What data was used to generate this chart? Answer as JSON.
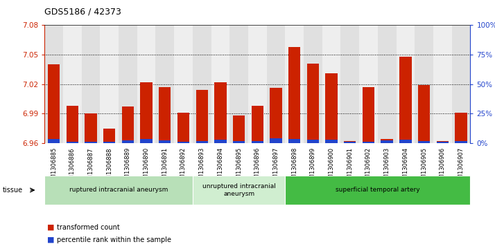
{
  "title": "GDS5186 / 42373",
  "samples": [
    "GSM1306885",
    "GSM1306886",
    "GSM1306887",
    "GSM1306888",
    "GSM1306889",
    "GSM1306890",
    "GSM1306891",
    "GSM1306892",
    "GSM1306893",
    "GSM1306894",
    "GSM1306895",
    "GSM1306896",
    "GSM1306897",
    "GSM1306898",
    "GSM1306899",
    "GSM1306900",
    "GSM1306901",
    "GSM1306902",
    "GSM1306903",
    "GSM1306904",
    "GSM1306905",
    "GSM1306906",
    "GSM1306907"
  ],
  "red_values": [
    7.04,
    6.998,
    6.99,
    6.975,
    6.997,
    7.022,
    7.017,
    6.991,
    7.014,
    7.022,
    6.988,
    6.998,
    7.016,
    7.058,
    7.041,
    7.031,
    6.962,
    7.017,
    6.964,
    7.048,
    7.019,
    6.962,
    6.991
  ],
  "blue_values": [
    3.5,
    1.0,
    1.0,
    1.0,
    2.0,
    3.5,
    2.0,
    1.0,
    1.5,
    3.0,
    1.5,
    1.5,
    4.0,
    3.5,
    3.0,
    3.0,
    1.0,
    1.0,
    2.5,
    3.0,
    1.5,
    1.0,
    1.5
  ],
  "groups": [
    {
      "label": "ruptured intracranial aneurysm",
      "start": 0,
      "end": 8,
      "color": "#b8e0b8"
    },
    {
      "label": "unruptured intracranial\naneurysm",
      "start": 8,
      "end": 13,
      "color": "#d0eed0"
    },
    {
      "label": "superficial temporal artery",
      "start": 13,
      "end": 23,
      "color": "#44bb44"
    }
  ],
  "ymin": 6.96,
  "ymax": 7.08,
  "yticks": [
    6.96,
    6.99,
    7.02,
    7.05,
    7.08
  ],
  "right_yticks": [
    0,
    25,
    50,
    75,
    100
  ],
  "right_yticklabels": [
    "0%",
    "25%",
    "50%",
    "75%",
    "100%"
  ],
  "bar_color_red": "#cc2200",
  "bar_color_blue": "#2244cc",
  "plot_bg": "#ffffff",
  "fig_bg": "#ffffff",
  "title_color": "#000000",
  "left_axis_color": "#cc2200",
  "right_axis_color": "#2244cc",
  "legend_red_label": "transformed count",
  "legend_blue_label": "percentile rank within the sample",
  "col_bg_even": "#e0e0e0",
  "col_bg_odd": "#eeeeee"
}
